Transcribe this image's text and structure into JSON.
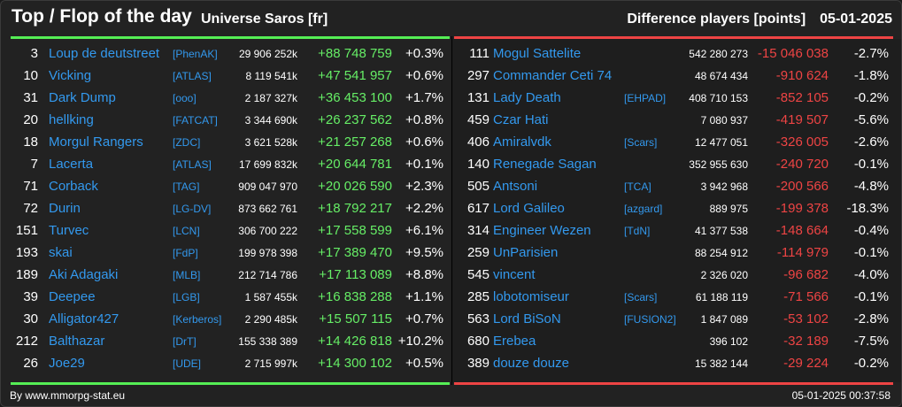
{
  "header": {
    "title": "Top / Flop of the day",
    "universe": "Universe Saros [fr]",
    "metric": "Difference players [points]",
    "date": "05-01-2025"
  },
  "colors": {
    "positive": "#66ee66",
    "negative": "#ee4444",
    "link": "#3399ee",
    "top_line": "#55ee55",
    "flop_line": "#ee4444"
  },
  "top": [
    {
      "rank": "3",
      "name": "Loup de deutstreet",
      "alliance": "[PhenAK]",
      "points": "29 906 252k",
      "diff": "+88 748 759",
      "pct": "+0.3%"
    },
    {
      "rank": "10",
      "name": "Vicking",
      "alliance": "[ATLAS]",
      "points": "8 119 541k",
      "diff": "+47 541 957",
      "pct": "+0.6%"
    },
    {
      "rank": "31",
      "name": "Dark Dump",
      "alliance": "[ooo]",
      "points": "2 187 327k",
      "diff": "+36 453 100",
      "pct": "+1.7%"
    },
    {
      "rank": "20",
      "name": "hellking",
      "alliance": "[FATCAT]",
      "points": "3 344 690k",
      "diff": "+26 237 562",
      "pct": "+0.8%"
    },
    {
      "rank": "18",
      "name": "Morgul Rangers",
      "alliance": "[ZDC]",
      "points": "3 621 528k",
      "diff": "+21 257 268",
      "pct": "+0.6%"
    },
    {
      "rank": "7",
      "name": "Lacerta",
      "alliance": "[ATLAS]",
      "points": "17 699 832k",
      "diff": "+20 644 781",
      "pct": "+0.1%"
    },
    {
      "rank": "71",
      "name": "Corback",
      "alliance": "[TAG]",
      "points": "909 047 970",
      "diff": "+20 026 590",
      "pct": "+2.3%"
    },
    {
      "rank": "72",
      "name": "Durin",
      "alliance": "[LG-DV]",
      "points": "873 662 761",
      "diff": "+18 792 217",
      "pct": "+2.2%"
    },
    {
      "rank": "151",
      "name": "Turvec",
      "alliance": "[LCN]",
      "points": "306 700 222",
      "diff": "+17 558 599",
      "pct": "+6.1%"
    },
    {
      "rank": "193",
      "name": "skai",
      "alliance": "[FdP]",
      "points": "199 978 398",
      "diff": "+17 389 470",
      "pct": "+9.5%"
    },
    {
      "rank": "189",
      "name": "Aki Adagaki",
      "alliance": "[MLB]",
      "points": "212 714 786",
      "diff": "+17 113 089",
      "pct": "+8.8%"
    },
    {
      "rank": "39",
      "name": "Deepee",
      "alliance": "[LGB]",
      "points": "1 587 455k",
      "diff": "+16 838 288",
      "pct": "+1.1%"
    },
    {
      "rank": "30",
      "name": "Alligator427",
      "alliance": "[Kerberos]",
      "points": "2 290 485k",
      "diff": "+15 507 115",
      "pct": "+0.7%"
    },
    {
      "rank": "212",
      "name": "Balthazar",
      "alliance": "[DrT]",
      "points": "155 338 389",
      "diff": "+14 426 818",
      "pct": "+10.2%"
    },
    {
      "rank": "26",
      "name": "Joe29",
      "alliance": "[UDE]",
      "points": "2 715 997k",
      "diff": "+14 300 102",
      "pct": "+0.5%"
    }
  ],
  "flop": [
    {
      "rank": "111",
      "name": "Mogul Sattelite",
      "alliance": "",
      "points": "542 280 273",
      "diff": "-15 046 038",
      "pct": "-2.7%"
    },
    {
      "rank": "297",
      "name": "Commander Ceti 74",
      "alliance": "",
      "points": "48 674 434",
      "diff": "-910 624",
      "pct": "-1.8%"
    },
    {
      "rank": "131",
      "name": "Lady Death",
      "alliance": "[EHPAD]",
      "points": "408 710 153",
      "diff": "-852 105",
      "pct": "-0.2%"
    },
    {
      "rank": "459",
      "name": "Czar Hati",
      "alliance": "",
      "points": "7 080 937",
      "diff": "-419 507",
      "pct": "-5.6%"
    },
    {
      "rank": "406",
      "name": "Amiralvdk",
      "alliance": "[Scars]",
      "points": "12 477 051",
      "diff": "-326 005",
      "pct": "-2.6%"
    },
    {
      "rank": "140",
      "name": "Renegade Sagan",
      "alliance": "",
      "points": "352 955 630",
      "diff": "-240 720",
      "pct": "-0.1%"
    },
    {
      "rank": "505",
      "name": "Antsoni",
      "alliance": "[TCA]",
      "points": "3 942 968",
      "diff": "-200 566",
      "pct": "-4.8%"
    },
    {
      "rank": "617",
      "name": "Lord Galileo",
      "alliance": "[azgard]",
      "points": "889 975",
      "diff": "-199 378",
      "pct": "-18.3%"
    },
    {
      "rank": "314",
      "name": "Engineer Wezen",
      "alliance": "[TdN]",
      "points": "41 377 538",
      "diff": "-148 664",
      "pct": "-0.4%"
    },
    {
      "rank": "259",
      "name": "UnParisien",
      "alliance": "",
      "points": "88 254 912",
      "diff": "-114 979",
      "pct": "-0.1%"
    },
    {
      "rank": "545",
      "name": "vincent",
      "alliance": "",
      "points": "2 326 020",
      "diff": "-96 682",
      "pct": "-4.0%"
    },
    {
      "rank": "285",
      "name": "lobotomiseur",
      "alliance": "[Scars]",
      "points": "61 188 119",
      "diff": "-71 566",
      "pct": "-0.1%"
    },
    {
      "rank": "563",
      "name": "Lord BiSoN",
      "alliance": "[FUSION2]",
      "points": "1 847 089",
      "diff": "-53 102",
      "pct": "-2.8%"
    },
    {
      "rank": "680",
      "name": "Erebea",
      "alliance": "",
      "points": "396 102",
      "diff": "-32 189",
      "pct": "-7.5%"
    },
    {
      "rank": "389",
      "name": "douze douze",
      "alliance": "",
      "points": "15 382 144",
      "diff": "-29 224",
      "pct": "-0.2%"
    }
  ],
  "footer": {
    "source": "By www.mmorpg-stat.eu",
    "timestamp": "05-01-2025 00:37:58"
  }
}
